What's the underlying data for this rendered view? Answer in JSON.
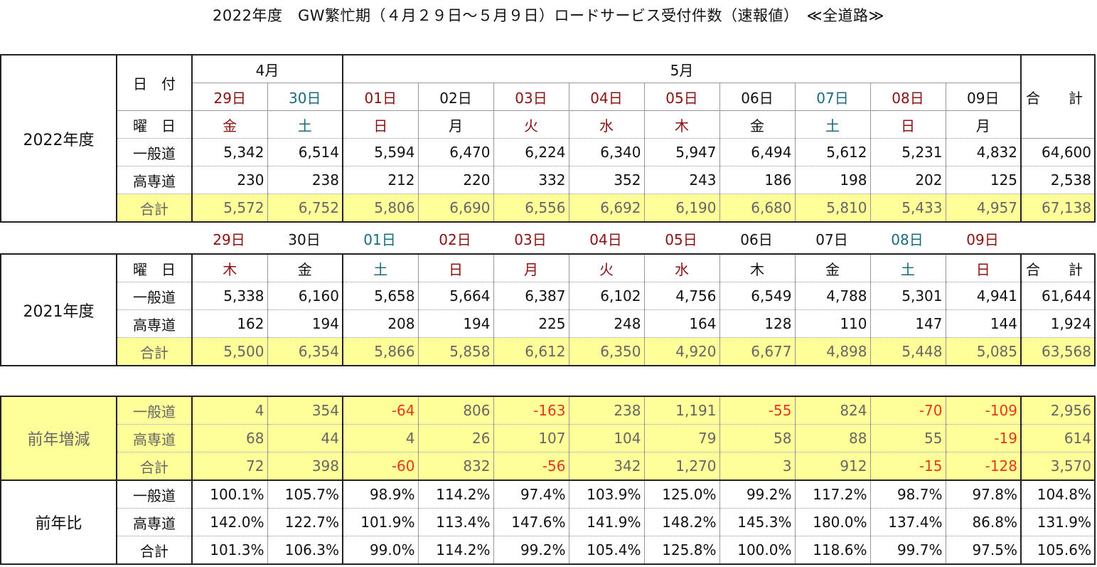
{
  "title": "2022年度　GW繁忙期（４月２９日～５月９日）ロードサービス受付件数（速報値）　≪全道路≫",
  "fy2022": {
    "label": "2022年度",
    "month_apr": "4月",
    "month_may": "5月",
    "date_label": "日　付",
    "weekday_label": "曜　日",
    "total_label": "合　計",
    "dates": [
      "29日",
      "30日",
      "01日",
      "02日",
      "03日",
      "04日",
      "05日",
      "06日",
      "07日",
      "08日",
      "09日"
    ],
    "weekdays": [
      "金",
      "土",
      "日",
      "月",
      "火",
      "水",
      "木",
      "金",
      "土",
      "日",
      "月"
    ],
    "rows": [
      {
        "label": "一般道",
        "values": [
          "5,342",
          "6,514",
          "5,594",
          "6,470",
          "6,224",
          "6,340",
          "5,947",
          "6,494",
          "5,612",
          "5,231",
          "4,832"
        ],
        "total": "64,600"
      },
      {
        "label": "高専道",
        "values": [
          "230",
          "238",
          "212",
          "220",
          "332",
          "352",
          "243",
          "186",
          "198",
          "202",
          "125"
        ],
        "total": "2,538"
      },
      {
        "label": "合計",
        "values": [
          "5,572",
          "6,752",
          "5,806",
          "6,690",
          "6,556",
          "6,692",
          "6,190",
          "6,680",
          "5,810",
          "5,433",
          "4,957"
        ],
        "total": "67,138"
      }
    ]
  },
  "fy2021": {
    "label": "2021年度",
    "dates": [
      "29日",
      "30日",
      "01日",
      "02日",
      "03日",
      "04日",
      "05日",
      "06日",
      "07日",
      "08日",
      "09日"
    ],
    "weekday_label": "曜　日",
    "total_label": "合　計",
    "weekdays": [
      "木",
      "金",
      "土",
      "日",
      "月",
      "火",
      "水",
      "木",
      "金",
      "土",
      "日"
    ],
    "rows": [
      {
        "label": "一般道",
        "values": [
          "5,338",
          "6,160",
          "5,658",
          "5,664",
          "6,387",
          "6,102",
          "4,756",
          "6,549",
          "4,788",
          "5,301",
          "4,941"
        ],
        "total": "61,644"
      },
      {
        "label": "高専道",
        "values": [
          "162",
          "194",
          "208",
          "194",
          "225",
          "248",
          "164",
          "128",
          "110",
          "147",
          "144"
        ],
        "total": "1,924"
      },
      {
        "label": "合計",
        "values": [
          "5,500",
          "6,354",
          "5,866",
          "5,858",
          "6,612",
          "6,350",
          "4,920",
          "6,677",
          "4,898",
          "5,448",
          "5,085"
        ],
        "total": "63,568"
      }
    ]
  },
  "diff": {
    "label": "前年増減",
    "rows": [
      {
        "label": "一般道",
        "values": [
          "4",
          "354",
          "-64",
          "806",
          "-163",
          "238",
          "1,191",
          "-55",
          "824",
          "-70",
          "-109"
        ],
        "total": "2,956"
      },
      {
        "label": "高専道",
        "values": [
          "68",
          "44",
          "4",
          "26",
          "107",
          "104",
          "79",
          "58",
          "88",
          "55",
          "-19"
        ],
        "total": "614"
      },
      {
        "label": "合計",
        "values": [
          "72",
          "398",
          "-60",
          "832",
          "-56",
          "342",
          "1,270",
          "3",
          "912",
          "-15",
          "-128"
        ],
        "total": "3,570"
      }
    ]
  },
  "ratio": {
    "label": "前年比",
    "rows": [
      {
        "label": "一般道",
        "values": [
          "100.1%",
          "105.7%",
          "98.9%",
          "114.2%",
          "97.4%",
          "103.9%",
          "125.0%",
          "99.2%",
          "117.2%",
          "98.7%",
          "97.8%"
        ],
        "total": "104.8%"
      },
      {
        "label": "高専道",
        "values": [
          "142.0%",
          "122.7%",
          "101.9%",
          "113.4%",
          "147.6%",
          "141.9%",
          "148.2%",
          "145.3%",
          "180.0%",
          "137.4%",
          "86.8%"
        ],
        "total": "131.9%"
      },
      {
        "label": "合計",
        "values": [
          "101.3%",
          "106.3%",
          "99.0%",
          "114.2%",
          "99.2%",
          "105.4%",
          "125.8%",
          "100.0%",
          "118.6%",
          "99.7%",
          "97.5%"
        ],
        "total": "105.6%"
      }
    ]
  },
  "colors": {
    "highlight": "#ffff99",
    "holiday_red": "#8b1010",
    "saturday_teal": "#1a6a7e",
    "negative": "#e0391f",
    "muted": "#666666"
  }
}
